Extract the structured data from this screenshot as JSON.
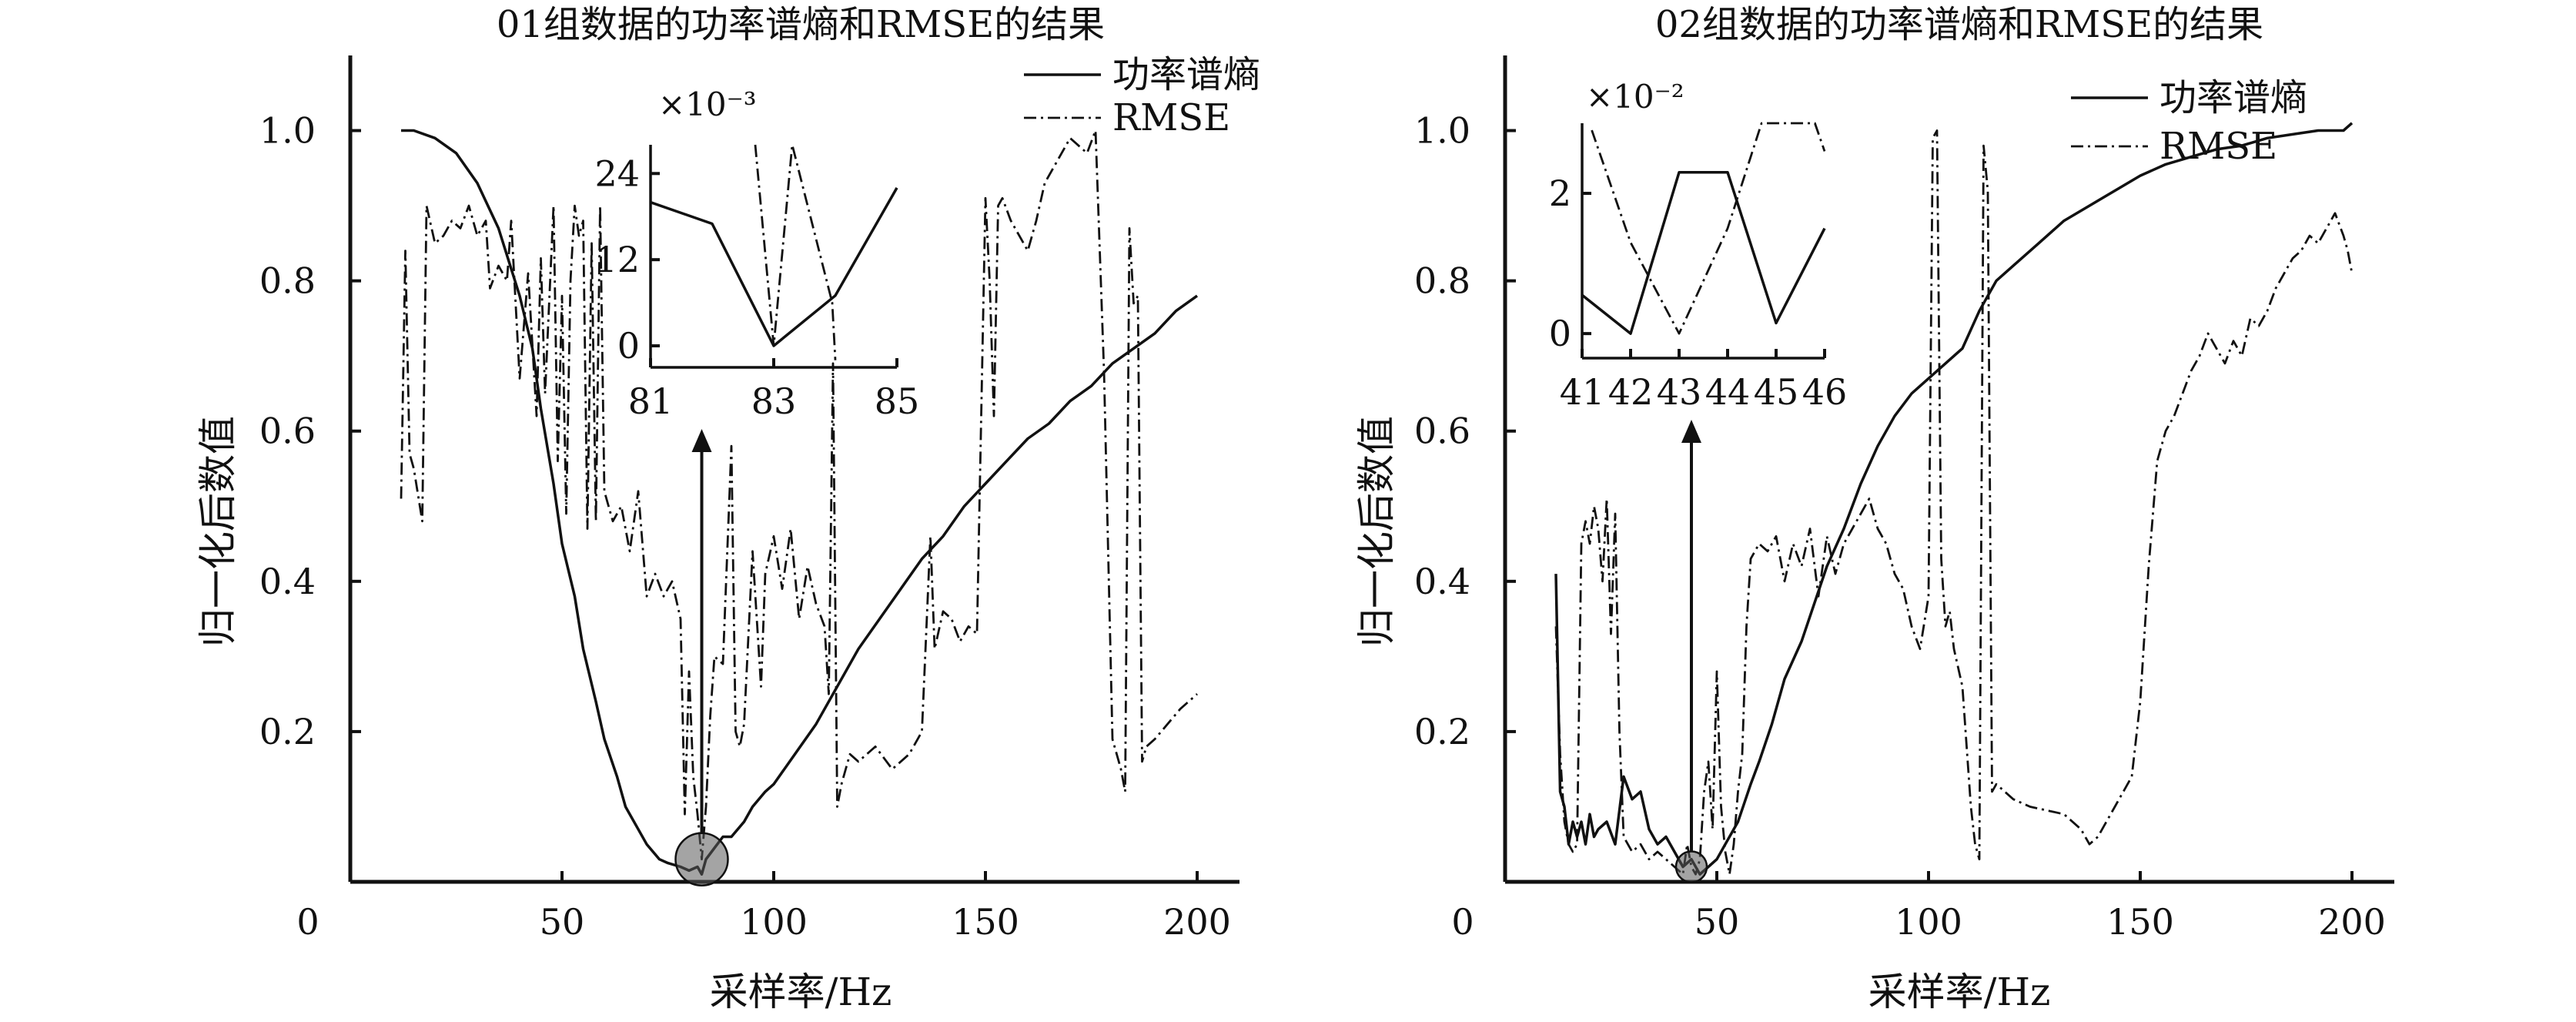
{
  "chart_data": [
    {
      "type": "line",
      "title": "01组数据的功率谱熵和RMSE的结果",
      "xlabel": "采样率/Hz",
      "ylabel": "归一化后数值",
      "xlim": [
        0,
        210
      ],
      "ylim": [
        0,
        1.1
      ],
      "x_ticks": [
        "0",
        "50",
        "100",
        "150",
        "200"
      ],
      "y_ticks": [
        "0.2",
        "0.4",
        "0.6",
        "0.8",
        "1.0"
      ],
      "legend": {
        "placement": "top-right",
        "entries": [
          "功率谱熵",
          "RMSE"
        ]
      },
      "series": [
        {
          "name": "功率谱熵",
          "style": "solid",
          "x": [
            12,
            15,
            20,
            25,
            30,
            35,
            40,
            43,
            45,
            48,
            50,
            53,
            55,
            58,
            60,
            63,
            65,
            68,
            70,
            73,
            75,
            78,
            80,
            82,
            83,
            84,
            86,
            88,
            90,
            93,
            95,
            98,
            100,
            105,
            110,
            115,
            120,
            125,
            130,
            135,
            140,
            145,
            150,
            155,
            160,
            165,
            170,
            175,
            180,
            185,
            190,
            195,
            200
          ],
          "y": [
            1.0,
            1.0,
            0.99,
            0.97,
            0.93,
            0.87,
            0.78,
            0.71,
            0.63,
            0.53,
            0.45,
            0.38,
            0.31,
            0.24,
            0.19,
            0.14,
            0.1,
            0.07,
            0.05,
            0.03,
            0.025,
            0.02,
            0.015,
            0.02,
            0.01,
            0.03,
            0.045,
            0.06,
            0.06,
            0.08,
            0.1,
            0.12,
            0.13,
            0.17,
            0.21,
            0.26,
            0.31,
            0.35,
            0.39,
            0.43,
            0.46,
            0.5,
            0.53,
            0.56,
            0.59,
            0.61,
            0.64,
            0.66,
            0.69,
            0.71,
            0.73,
            0.76,
            0.78
          ]
        },
        {
          "name": "RMSE",
          "style": "dash-dot",
          "x": [
            12,
            13,
            14,
            15,
            17,
            18,
            20,
            22,
            24,
            26,
            28,
            30,
            32,
            33,
            35,
            37,
            38,
            40,
            42,
            44,
            45,
            46,
            48,
            49,
            50,
            51,
            52,
            53,
            54,
            55,
            56,
            57,
            58,
            59,
            60,
            62,
            64,
            66,
            68,
            70,
            72,
            74,
            76,
            78,
            79,
            80,
            81,
            82,
            83,
            84,
            85,
            86,
            88,
            90,
            91,
            92,
            93,
            95,
            97,
            98,
            100,
            102,
            104,
            106,
            108,
            110,
            112,
            113,
            114,
            115,
            116,
            118,
            120,
            124,
            128,
            132,
            135,
            137,
            138,
            140,
            142,
            144,
            146,
            148,
            150,
            151,
            152,
            153,
            154,
            156,
            158,
            160,
            162,
            164,
            166,
            168,
            170,
            172,
            174,
            176,
            178,
            180,
            182,
            183,
            184,
            185,
            186,
            187,
            188,
            190,
            193,
            196,
            200
          ],
          "y": [
            0.51,
            0.84,
            0.57,
            0.55,
            0.48,
            0.9,
            0.85,
            0.86,
            0.88,
            0.87,
            0.9,
            0.86,
            0.88,
            0.79,
            0.82,
            0.8,
            0.88,
            0.67,
            0.81,
            0.62,
            0.83,
            0.65,
            0.9,
            0.56,
            0.78,
            0.49,
            0.8,
            0.9,
            0.86,
            0.88,
            0.47,
            0.85,
            0.48,
            0.9,
            0.52,
            0.48,
            0.5,
            0.44,
            0.52,
            0.38,
            0.41,
            0.38,
            0.4,
            0.35,
            0.09,
            0.28,
            0.14,
            0.09,
            0.03,
            0.1,
            0.22,
            0.3,
            0.29,
            0.58,
            0.2,
            0.18,
            0.21,
            0.44,
            0.26,
            0.41,
            0.46,
            0.39,
            0.47,
            0.35,
            0.42,
            0.37,
            0.34,
            0.25,
            0.69,
            0.1,
            0.13,
            0.17,
            0.16,
            0.18,
            0.15,
            0.17,
            0.2,
            0.46,
            0.31,
            0.36,
            0.35,
            0.32,
            0.34,
            0.33,
            0.91,
            0.8,
            0.62,
            0.9,
            0.91,
            0.88,
            0.86,
            0.84,
            0.88,
            0.93,
            0.95,
            0.97,
            0.99,
            0.98,
            0.97,
            1.0,
            0.68,
            0.19,
            0.15,
            0.12,
            0.87,
            0.77,
            0.78,
            0.16,
            0.18,
            0.19,
            0.21,
            0.23,
            0.25
          ]
        }
      ],
      "inset": {
        "position": "top-center",
        "x_ticks": [
          "81",
          "83",
          "85"
        ],
        "y_ticks": [
          "0",
          "12",
          "24"
        ],
        "scale_label": "×10⁻³",
        "xlim": [
          81,
          85
        ],
        "ylim": [
          -3,
          28
        ],
        "series": [
          {
            "name": "功率谱熵",
            "style": "solid",
            "x": [
              81,
              82,
              83,
              84,
              85
            ],
            "y": [
              20,
              17,
              0,
              7,
              22
            ]
          },
          {
            "name": "RMSE",
            "style": "dash-dot",
            "x": [
              82.7,
              83.0,
              83.3,
              83.95,
              84.0
            ],
            "y": [
              28,
              0,
              28,
              6,
              -2
            ]
          }
        ],
        "callout_x": 83,
        "callout_y": 0.03
      }
    },
    {
      "type": "line",
      "title": "02组数据的功率谱熵和RMSE的结果",
      "xlabel": "采样率/Hz",
      "ylabel": "归一化后数值",
      "xlim": [
        0,
        210
      ],
      "ylim": [
        0,
        1.1
      ],
      "x_ticks": [
        "0",
        "50",
        "100",
        "150",
        "200"
      ],
      "y_ticks": [
        "0.2",
        "0.4",
        "0.6",
        "0.8",
        "1.0"
      ],
      "legend": {
        "placement": "top-right",
        "entries": [
          "功率谱熵",
          "RMSE"
        ]
      },
      "series": [
        {
          "name": "功率谱熵",
          "style": "solid",
          "x": [
            12,
            13,
            14,
            15,
            16,
            17,
            18,
            19,
            20,
            21,
            22,
            24,
            26,
            28,
            30,
            32,
            34,
            36,
            38,
            40,
            42,
            44,
            46,
            48,
            50,
            52,
            55,
            58,
            60,
            63,
            66,
            70,
            73,
            76,
            80,
            84,
            88,
            92,
            96,
            100,
            104,
            108,
            112,
            116,
            120,
            126,
            132,
            138,
            144,
            150,
            156,
            162,
            168,
            174,
            180,
            186,
            192,
            198,
            200
          ],
          "y": [
            0.41,
            0.12,
            0.1,
            0.05,
            0.08,
            0.06,
            0.08,
            0.05,
            0.09,
            0.06,
            0.07,
            0.08,
            0.05,
            0.14,
            0.11,
            0.12,
            0.07,
            0.05,
            0.06,
            0.04,
            0.02,
            0.03,
            0.01,
            0.02,
            0.03,
            0.05,
            0.08,
            0.13,
            0.16,
            0.21,
            0.27,
            0.32,
            0.37,
            0.42,
            0.47,
            0.53,
            0.58,
            0.62,
            0.65,
            0.67,
            0.69,
            0.71,
            0.76,
            0.8,
            0.82,
            0.85,
            0.88,
            0.9,
            0.92,
            0.94,
            0.955,
            0.965,
            0.975,
            0.98,
            0.99,
            0.995,
            1.0,
            1.0,
            1.01
          ]
        },
        {
          "name": "RMSE",
          "style": "dash-dot",
          "x": [
            12,
            13,
            14,
            15,
            16,
            17,
            18,
            19,
            20,
            21,
            22,
            23,
            24,
            25,
            26,
            27,
            28,
            30,
            32,
            34,
            36,
            38,
            40,
            42,
            43,
            44,
            45,
            46,
            47,
            48,
            49,
            50,
            51,
            52,
            53,
            54,
            55,
            56,
            57,
            58,
            60,
            62,
            64,
            66,
            68,
            70,
            72,
            74,
            76,
            78,
            80,
            82,
            84,
            86,
            88,
            90,
            92,
            94,
            96,
            98,
            100,
            101,
            102,
            103,
            104,
            105,
            106,
            108,
            110,
            111,
            112,
            113,
            114,
            115,
            116,
            118,
            120,
            124,
            128,
            132,
            136,
            138,
            140,
            144,
            148,
            150,
            152,
            154,
            156,
            158,
            160,
            162,
            164,
            166,
            168,
            170,
            172,
            174,
            176,
            178,
            180,
            182,
            184,
            186,
            188,
            190,
            192,
            194,
            196,
            198,
            199,
            200
          ],
          "y": [
            0.34,
            0.17,
            0.08,
            0.05,
            0.04,
            0.05,
            0.45,
            0.48,
            0.45,
            0.5,
            0.47,
            0.4,
            0.51,
            0.33,
            0.49,
            0.2,
            0.06,
            0.04,
            0.05,
            0.03,
            0.04,
            0.03,
            0.02,
            0.01,
            0.05,
            0.02,
            0.01,
            0.03,
            0.12,
            0.16,
            0.07,
            0.28,
            0.1,
            0.04,
            0.01,
            0.05,
            0.12,
            0.17,
            0.34,
            0.43,
            0.45,
            0.44,
            0.46,
            0.4,
            0.45,
            0.42,
            0.47,
            0.38,
            0.46,
            0.41,
            0.45,
            0.47,
            0.49,
            0.51,
            0.47,
            0.45,
            0.41,
            0.39,
            0.34,
            0.31,
            0.38,
            0.99,
            1.0,
            0.43,
            0.34,
            0.36,
            0.31,
            0.26,
            0.1,
            0.05,
            0.03,
            0.98,
            0.92,
            0.12,
            0.13,
            0.12,
            0.11,
            0.1,
            0.095,
            0.09,
            0.07,
            0.05,
            0.06,
            0.1,
            0.14,
            0.24,
            0.42,
            0.56,
            0.6,
            0.62,
            0.65,
            0.68,
            0.7,
            0.73,
            0.71,
            0.69,
            0.72,
            0.7,
            0.75,
            0.74,
            0.76,
            0.79,
            0.81,
            0.83,
            0.84,
            0.86,
            0.85,
            0.87,
            0.89,
            0.86,
            0.84,
            0.81
          ]
        }
      ],
      "inset": {
        "position": "top-left",
        "x_ticks": [
          "41",
          "42",
          "43",
          "44",
          "45",
          "46"
        ],
        "y_ticks": [
          "0",
          "2"
        ],
        "scale_label": "×10⁻²",
        "xlim": [
          41,
          46
        ],
        "ylim": [
          -0.35,
          3.0
        ],
        "series": [
          {
            "name": "功率谱熵",
            "style": "solid",
            "x": [
              41,
              42,
              43,
              44,
              45,
              46
            ],
            "y": [
              0.55,
              0.0,
              2.3,
              2.3,
              0.15,
              1.5
            ]
          },
          {
            "name": "RMSE",
            "style": "dash-dot",
            "x": [
              41.2,
              42,
              43,
              44,
              44.7,
              45.8,
              46
            ],
            "y": [
              2.9,
              1.3,
              0.0,
              1.5,
              3.0,
              3.0,
              2.6
            ]
          }
        ],
        "callout_x": 44,
        "callout_y": 0.02
      }
    }
  ]
}
